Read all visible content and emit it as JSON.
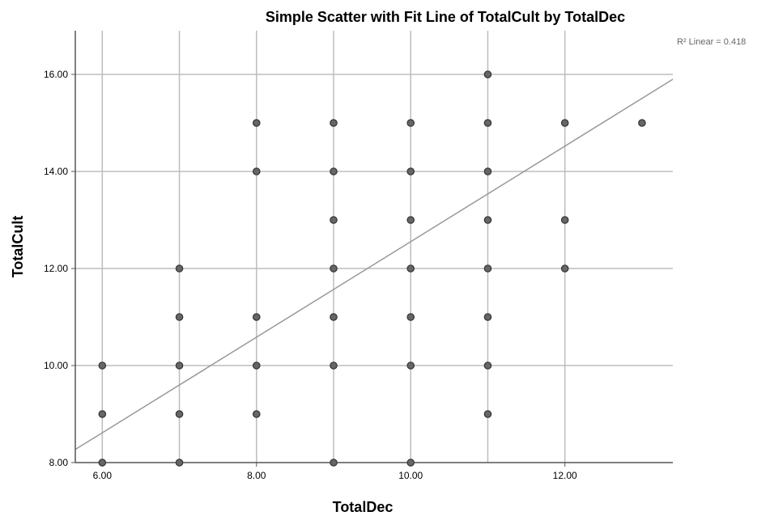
{
  "chart_data": {
    "type": "scatter",
    "title": "Simple Scatter with Fit Line of TotalCult by TotalDec",
    "xlabel": "TotalDec",
    "ylabel": "TotalCult",
    "xlim": [
      5.65,
      13.4
    ],
    "ylim": [
      8.0,
      16.9
    ],
    "x_ticks": [
      6,
      8,
      10,
      12
    ],
    "x_tick_labels": [
      "6.00",
      "8.00",
      "10.00",
      "12.00"
    ],
    "y_ticks": [
      8,
      10,
      12,
      14,
      16
    ],
    "y_tick_labels": [
      "8.00",
      "10.00",
      "12.00",
      "14.00",
      "16.00"
    ],
    "x_gridlines": [
      6,
      7,
      8,
      9,
      10,
      11,
      12
    ],
    "y_gridlines": [
      10,
      12,
      14,
      16
    ],
    "grid": true,
    "fit_line": {
      "type": "linear",
      "x": [
        5.65,
        13.4
      ],
      "y": [
        8.27,
        15.9
      ],
      "color": "#999999"
    },
    "annotation": "R² Linear = 0.418",
    "point_fill": "#666666",
    "point_stroke": "#333333",
    "points": [
      {
        "x": 6,
        "y": 8
      },
      {
        "x": 6,
        "y": 9
      },
      {
        "x": 6,
        "y": 10
      },
      {
        "x": 7,
        "y": 8
      },
      {
        "x": 7,
        "y": 9
      },
      {
        "x": 7,
        "y": 10
      },
      {
        "x": 7,
        "y": 11
      },
      {
        "x": 7,
        "y": 12
      },
      {
        "x": 8,
        "y": 9
      },
      {
        "x": 8,
        "y": 10
      },
      {
        "x": 8,
        "y": 11
      },
      {
        "x": 8,
        "y": 14
      },
      {
        "x": 8,
        "y": 15
      },
      {
        "x": 9,
        "y": 8
      },
      {
        "x": 9,
        "y": 10
      },
      {
        "x": 9,
        "y": 11
      },
      {
        "x": 9,
        "y": 12
      },
      {
        "x": 9,
        "y": 13
      },
      {
        "x": 9,
        "y": 14
      },
      {
        "x": 9,
        "y": 15
      },
      {
        "x": 10,
        "y": 8
      },
      {
        "x": 10,
        "y": 10
      },
      {
        "x": 10,
        "y": 11
      },
      {
        "x": 10,
        "y": 12
      },
      {
        "x": 10,
        "y": 13
      },
      {
        "x": 10,
        "y": 14
      },
      {
        "x": 10,
        "y": 15
      },
      {
        "x": 11,
        "y": 9
      },
      {
        "x": 11,
        "y": 10
      },
      {
        "x": 11,
        "y": 11
      },
      {
        "x": 11,
        "y": 12
      },
      {
        "x": 11,
        "y": 13
      },
      {
        "x": 11,
        "y": 14
      },
      {
        "x": 11,
        "y": 15
      },
      {
        "x": 11,
        "y": 16
      },
      {
        "x": 12,
        "y": 12
      },
      {
        "x": 12,
        "y": 13
      },
      {
        "x": 12,
        "y": 15
      },
      {
        "x": 13,
        "y": 15
      }
    ]
  }
}
